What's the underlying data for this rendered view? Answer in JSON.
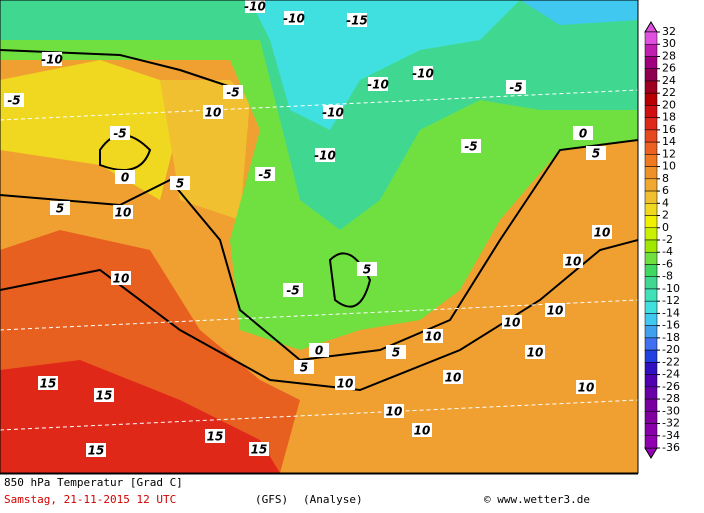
{
  "map": {
    "contour_labels": [
      -10,
      -5,
      -5,
      0,
      5,
      10,
      10,
      15,
      15,
      15,
      15,
      15,
      10,
      10,
      10,
      10,
      10,
      10,
      10,
      5,
      5,
      0,
      -5,
      -10,
      -10,
      -10,
      -5,
      -5,
      0,
      5,
      10,
      10,
      10,
      10,
      5,
      -5,
      -10,
      -15,
      -10,
      -10,
      10,
      5,
      -5
    ],
    "legend": {
      "ticks": [
        32,
        30,
        28,
        26,
        24,
        22,
        20,
        18,
        16,
        14,
        12,
        10,
        8,
        6,
        4,
        2,
        0,
        -2,
        -4,
        -6,
        -8,
        -10,
        -12,
        -14,
        -16,
        -18,
        -20,
        -22,
        -24,
        -26,
        -28,
        -30,
        -32,
        -34,
        -36
      ],
      "colors": [
        "#e050e0",
        "#c020b0",
        "#a00080",
        "#900050",
        "#a00020",
        "#b80000",
        "#d01010",
        "#e02818",
        "#e84820",
        "#ec6020",
        "#f07820",
        "#f09028",
        "#f0a830",
        "#f0c030",
        "#f0d820",
        "#f0f000",
        "#c8f000",
        "#a0e800",
        "#70e040",
        "#40d860",
        "#40d890",
        "#40e0b8",
        "#40e0e0",
        "#40c8f0",
        "#40a0f0",
        "#4070f0",
        "#2040e0",
        "#3010c0",
        "#5000b0",
        "#6800a8",
        "#7800a0",
        "#8000a0",
        "#8800a8",
        "#9000b0",
        "#9800b8"
      ]
    },
    "footer": {
      "title": "850 hPa Temperatur [Grad C]",
      "date": "Samstag, 21-11-2015  12 UTC",
      "model": "(GFS)",
      "run": "(Analyse)",
      "credit": "© www.wetter3.de"
    }
  }
}
